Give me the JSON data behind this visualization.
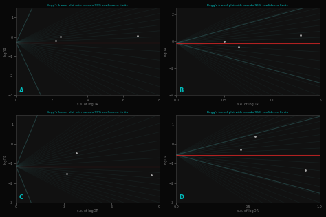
{
  "title": "Begg's funnel plot with pseudo 95% confidence limits",
  "bg_color": "#080808",
  "axes_color": "#111111",
  "text_color": "#00bbbb",
  "tick_color": "#777777",
  "spine_color": "#444444",
  "subplots": [
    {
      "label": "A",
      "xlabel": "s.e. of logOR",
      "ylabel": "logOR",
      "xlim": [
        0,
        8
      ],
      "ylim": [
        -3,
        1.5
      ],
      "xticks": [
        0,
        2,
        4,
        6,
        8
      ],
      "yticks": [
        -3,
        -2,
        -1,
        0,
        1
      ],
      "points": [
        [
          2.2,
          -0.18
        ],
        [
          2.5,
          0.02
        ],
        [
          6.8,
          0.05
        ]
      ],
      "hline_y": -0.28,
      "funnel_n_bands": 6,
      "funnel_color": "#336666",
      "funnel_alpha": 0.25,
      "funnel_lw": 0.6
    },
    {
      "label": "B",
      "xlabel": "s.e. of logOR",
      "ylabel": "logOR",
      "xlim": [
        0,
        1.5
      ],
      "ylim": [
        -4,
        2.5
      ],
      "xticks": [
        0,
        0.5,
        1,
        1.5
      ],
      "yticks": [
        -4,
        -2,
        0,
        2
      ],
      "points": [
        [
          0.5,
          0.02
        ],
        [
          0.65,
          -0.38
        ],
        [
          1.3,
          0.45
        ]
      ],
      "hline_y": -0.12,
      "funnel_n_bands": 6,
      "funnel_color": "#336666",
      "funnel_alpha": 0.25,
      "funnel_lw": 0.6
    },
    {
      "label": "C",
      "xlabel": "s.e. of logOR",
      "ylabel": "logOR",
      "xlim": [
        0,
        9
      ],
      "ylim": [
        -3,
        1.5
      ],
      "xticks": [
        0,
        3,
        6,
        9
      ],
      "yticks": [
        -3,
        -2,
        -1,
        0,
        1
      ],
      "points": [
        [
          3.2,
          -1.5
        ],
        [
          3.8,
          -0.45
        ],
        [
          8.5,
          -1.6
        ]
      ],
      "hline_y": -1.15,
      "funnel_n_bands": 6,
      "funnel_color": "#336666",
      "funnel_alpha": 0.25,
      "funnel_lw": 0.6
    },
    {
      "label": "D",
      "xlabel": "s.e. of logOR",
      "ylabel": "logOR",
      "xlim": [
        0,
        1
      ],
      "ylim": [
        -3,
        1.5
      ],
      "xticks": [
        0,
        0.5,
        1
      ],
      "yticks": [
        -3,
        -2,
        -1,
        0,
        1
      ],
      "points": [
        [
          0.45,
          -0.28
        ],
        [
          0.55,
          0.38
        ],
        [
          0.9,
          -1.35
        ]
      ],
      "hline_y": -0.55,
      "funnel_n_bands": 6,
      "funnel_color": "#336666",
      "funnel_alpha": 0.25,
      "funnel_lw": 0.6
    }
  ]
}
